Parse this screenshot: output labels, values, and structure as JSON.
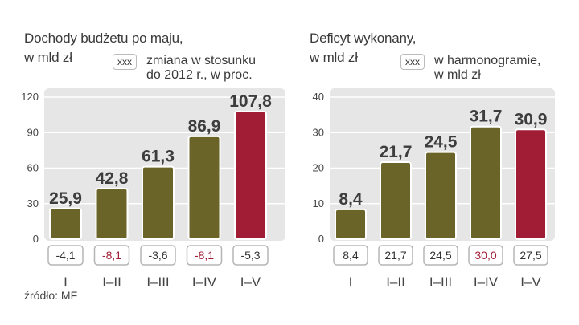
{
  "colors": {
    "olive": "#6b6428",
    "red": "#a11d36",
    "panel": "#e6e6e6",
    "grid": "#ffffff",
    "normalText": "#333333",
    "highlightText": "#a11d36"
  },
  "left": {
    "title_line1": "Dochody budżetu po maju,",
    "title_line2": "w mld zł",
    "legend_box": "xxx",
    "legend_line1": "zmiana w stosunku",
    "legend_line2": "do 2012 r., w proc."
  },
  "right": {
    "title_line1": "Deficyt wykonany,",
    "title_line2": "w mld zł",
    "legend_box": "xxx",
    "legend_line1": "w harmonogramie,",
    "legend_line2": "w mld zł"
  },
  "source": "źródło: MF",
  "chart_data": [
    {
      "type": "bar",
      "title": "Dochody budżetu po maju, w mld zł",
      "categories": [
        "I",
        "I–II",
        "I–III",
        "I–IV",
        "I–V"
      ],
      "values": [
        25.9,
        42.8,
        61.3,
        86.9,
        107.8
      ],
      "value_labels": [
        "25,9",
        "42,8",
        "61,3",
        "86,9",
        "107,8"
      ],
      "bar_colors": [
        "olive",
        "olive",
        "olive",
        "olive",
        "red"
      ],
      "ylim": [
        0,
        120
      ],
      "yticks": [
        "0",
        "30",
        "60",
        "90",
        "120"
      ],
      "ytick_values": [
        0,
        30,
        60,
        90,
        120
      ],
      "secondary_label": "zmiana w stosunku do 2012 r., w proc.",
      "secondary_values": [
        "-4,1",
        "-8,1",
        "-3,6",
        "-8,1",
        "-5,3"
      ],
      "secondary_highlight": [
        false,
        true,
        false,
        true,
        false
      ],
      "grid": true
    },
    {
      "type": "bar",
      "title": "Deficyt wykonany, w mld zł",
      "categories": [
        "I",
        "I–II",
        "I–III",
        "I–IV",
        "I–V"
      ],
      "values": [
        8.4,
        21.7,
        24.5,
        31.7,
        30.9
      ],
      "value_labels": [
        "8,4",
        "21,7",
        "24,5",
        "31,7",
        "30,9"
      ],
      "bar_colors": [
        "olive",
        "olive",
        "olive",
        "olive",
        "red"
      ],
      "ylim": [
        0,
        40
      ],
      "yticks": [
        "0",
        "10",
        "20",
        "30",
        "40"
      ],
      "ytick_values": [
        0,
        10,
        20,
        30,
        40
      ],
      "secondary_label": "w harmonogramie, w mld zł",
      "secondary_values": [
        "8,4",
        "21,7",
        "24,5",
        "30,0",
        "27,5"
      ],
      "secondary_highlight": [
        false,
        false,
        false,
        true,
        false
      ],
      "grid": true
    }
  ]
}
